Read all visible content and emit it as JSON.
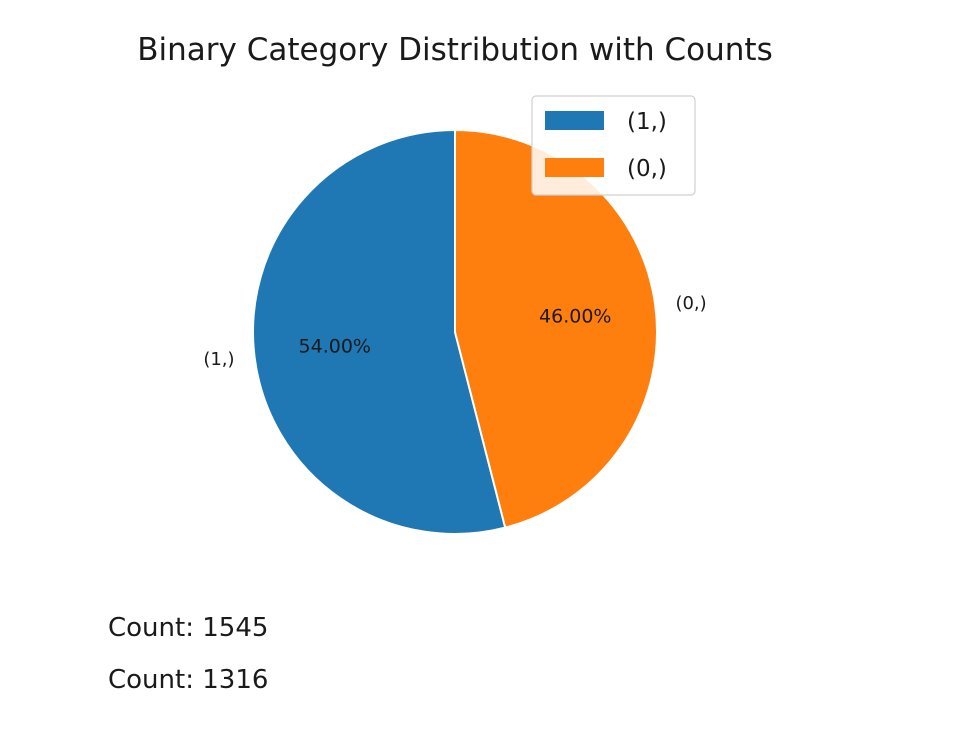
{
  "chart_data": {
    "type": "pie",
    "title": "Binary Category Distribution with Counts",
    "categories": [
      "(1,)",
      "(0,)"
    ],
    "values": [
      54.0,
      46.0
    ],
    "percent_labels": [
      "54.00%",
      "46.00%"
    ],
    "counts": [
      1545,
      1316
    ],
    "count_labels": [
      "Count: 1545",
      "Count: 1316"
    ],
    "colors": [
      "#1f77b4",
      "#ff7f0e"
    ],
    "start_angle_deg": 90,
    "direction": "counterclockwise",
    "legend": {
      "placement": "top-right",
      "entries": [
        "(1,)",
        "(0,)"
      ]
    }
  }
}
